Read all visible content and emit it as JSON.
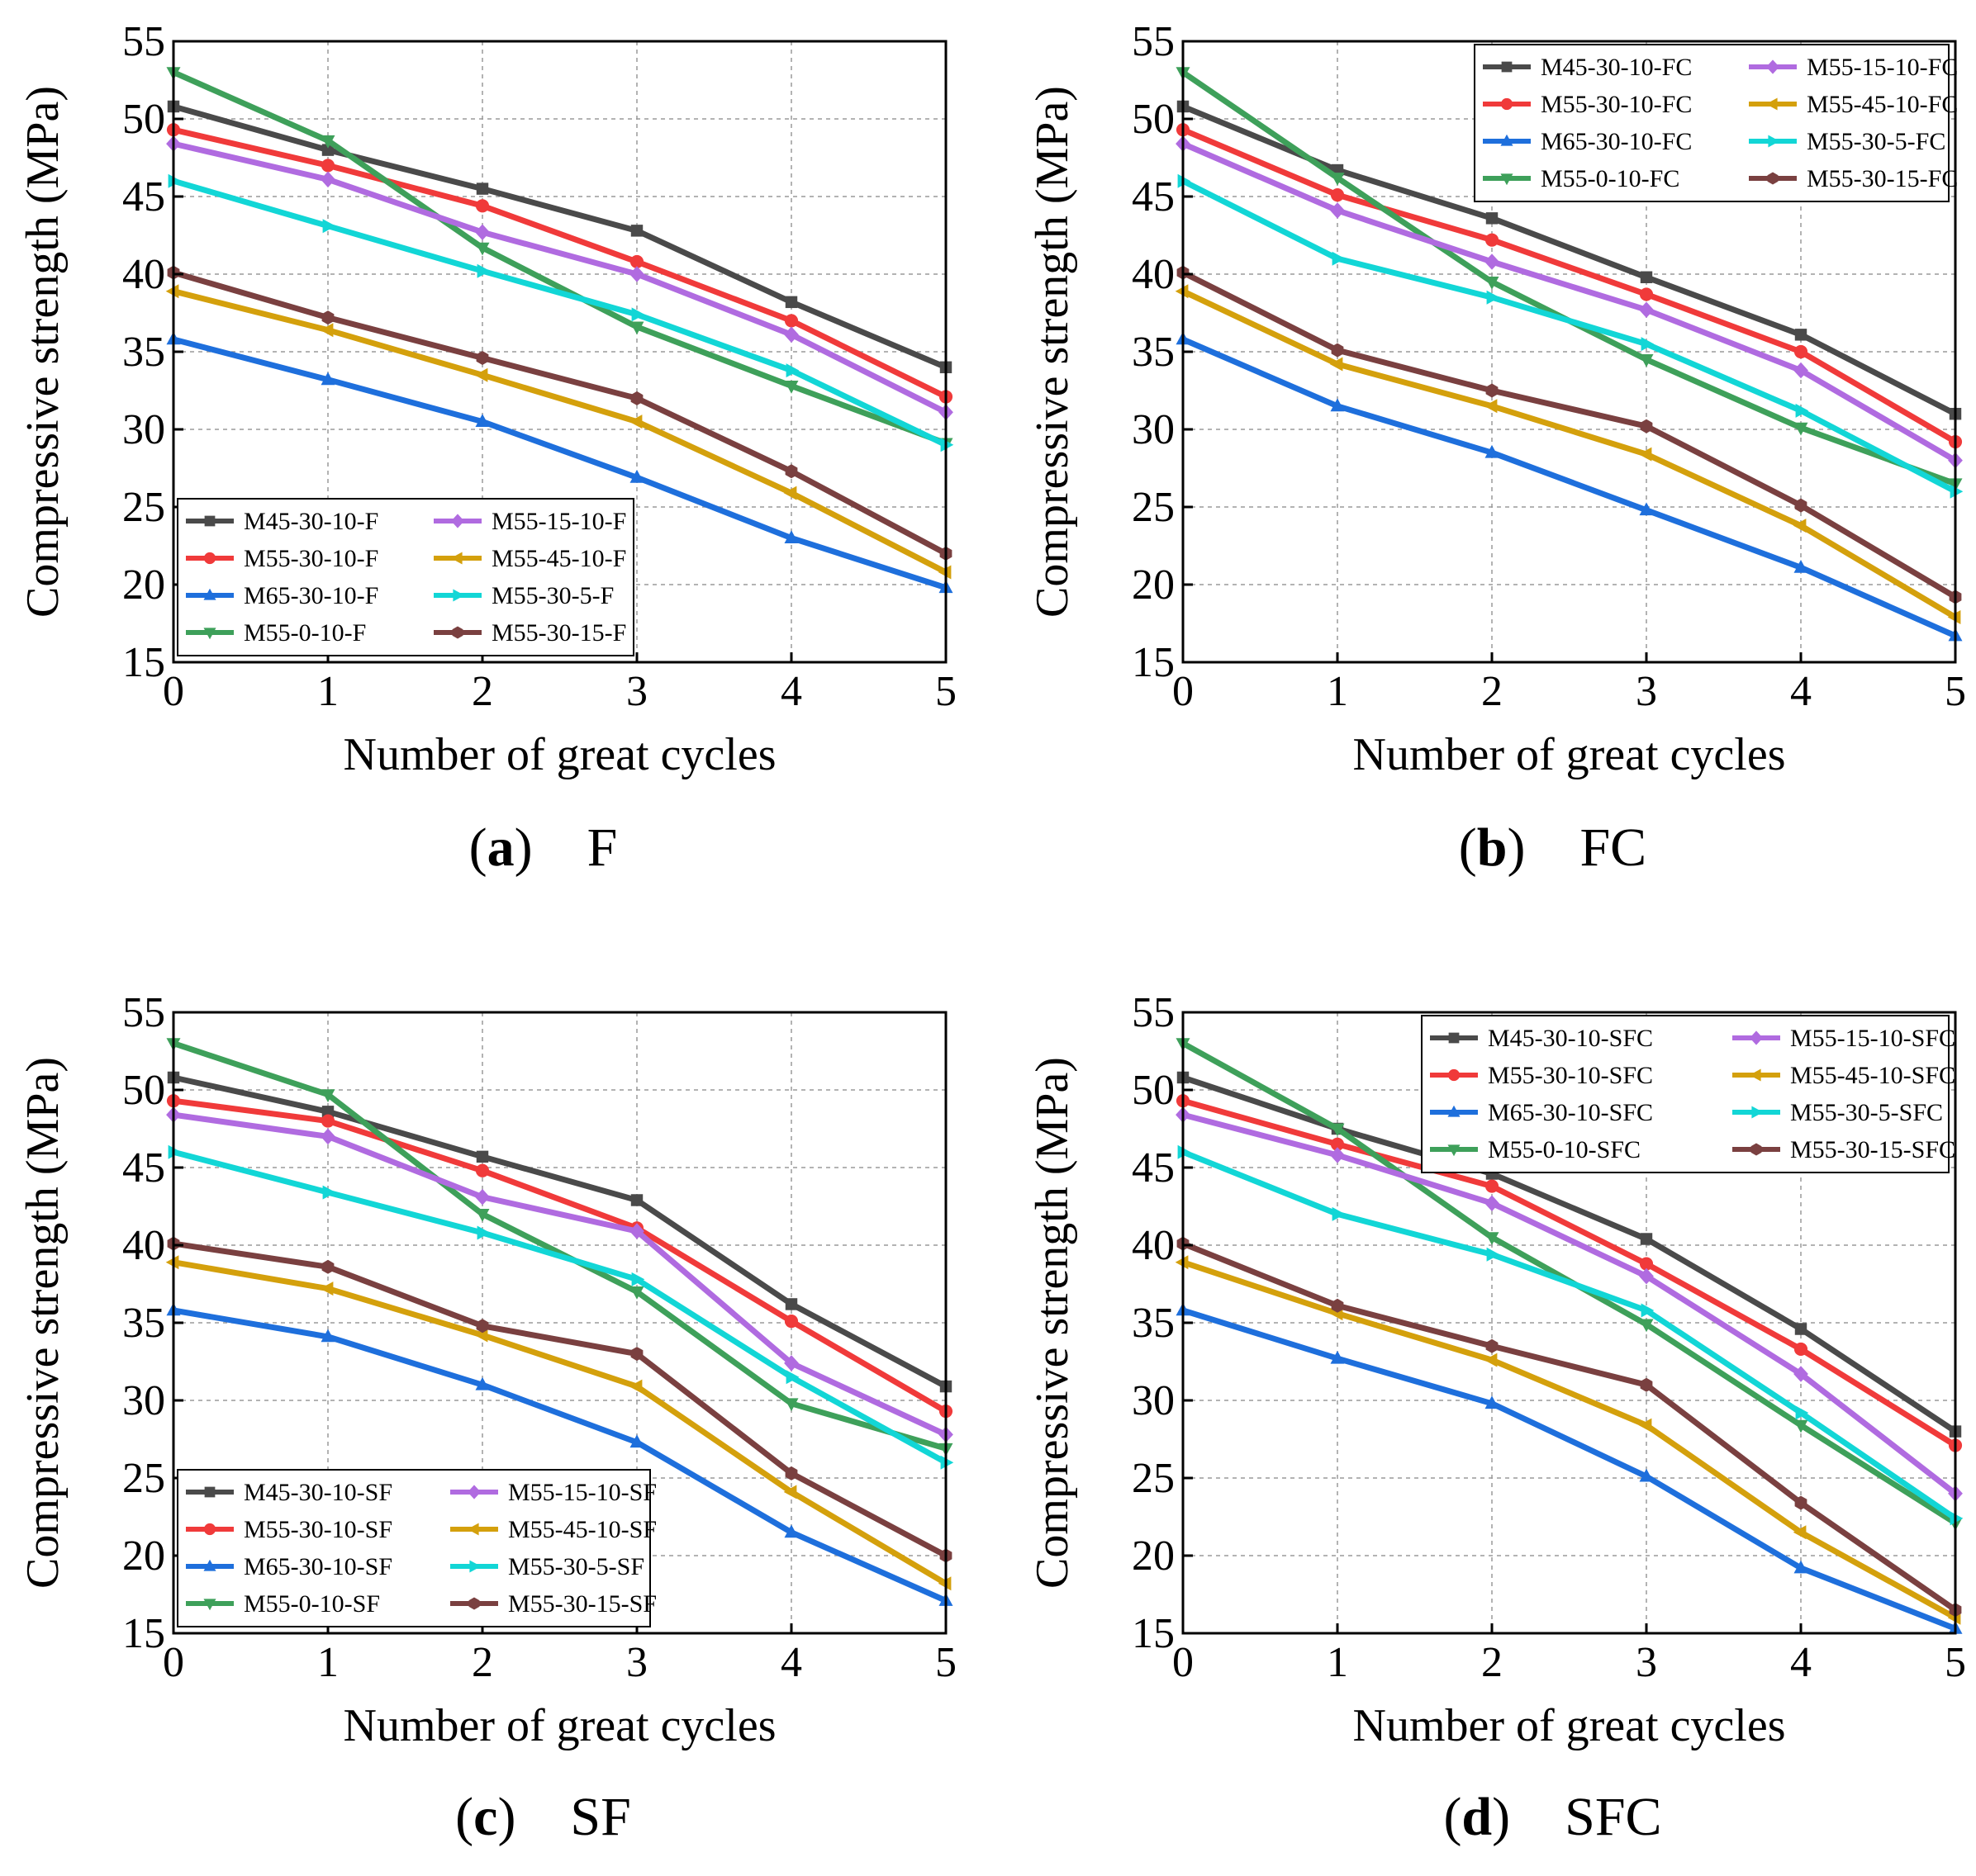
{
  "figure": {
    "colors": {
      "M45-30-10": "#4a4a4a",
      "M55-30-10": "#f03a3a",
      "M65-30-10": "#1e6fdc",
      "M55-0-10": "#3ea05a",
      "M55-15-10": "#b06be0",
      "M55-45-10": "#d4a00c",
      "M55-30-5": "#12d6d6",
      "M55-30-15": "#7a4040"
    }
  },
  "chart_data": [
    {
      "type": "line",
      "panel": "a",
      "caption_letter": "a",
      "caption_label": "F",
      "xlabel": "Number of great cycles",
      "ylabel": "Compressive strength (MPa)",
      "x": [
        0,
        1,
        2,
        3,
        4,
        5
      ],
      "xlim": [
        0,
        5
      ],
      "ylim": [
        15,
        55
      ],
      "xticks": [
        "0",
        "1",
        "2",
        "3",
        "4",
        "5"
      ],
      "yticks": [
        "15",
        "20",
        "25",
        "30",
        "35",
        "40",
        "45",
        "50",
        "55"
      ],
      "grid": true,
      "legend_position": "bottom-left",
      "series": [
        {
          "name": "M45-30-10-F",
          "key": "M45-30-10",
          "marker": "square",
          "values": [
            50.8,
            48.0,
            45.5,
            42.8,
            38.2,
            34.0
          ]
        },
        {
          "name": "M55-30-10-F",
          "key": "M55-30-10",
          "marker": "circle",
          "values": [
            49.3,
            47.0,
            44.4,
            40.8,
            37.0,
            32.1
          ]
        },
        {
          "name": "M65-30-10-F",
          "key": "M65-30-10",
          "marker": "triangle-up",
          "values": [
            35.8,
            33.2,
            30.5,
            26.9,
            23.0,
            19.8
          ]
        },
        {
          "name": "M55-0-10-F",
          "key": "M55-0-10",
          "marker": "triangle-down",
          "values": [
            53.0,
            48.6,
            41.7,
            36.6,
            32.8,
            29.1
          ]
        },
        {
          "name": "M55-15-10-F",
          "key": "M55-15-10",
          "marker": "diamond",
          "values": [
            48.4,
            46.1,
            42.7,
            40.0,
            36.1,
            31.1
          ]
        },
        {
          "name": "M55-45-10-F",
          "key": "M55-45-10",
          "marker": "triangle-left",
          "values": [
            38.9,
            36.4,
            33.5,
            30.5,
            25.9,
            20.8
          ]
        },
        {
          "name": "M55-30-5-F",
          "key": "M55-30-5",
          "marker": "triangle-right",
          "values": [
            46.0,
            43.1,
            40.2,
            37.4,
            33.8,
            29.0
          ]
        },
        {
          "name": "M55-30-15-F",
          "key": "M55-30-15",
          "marker": "hexagon",
          "values": [
            40.1,
            37.2,
            34.6,
            32.0,
            27.3,
            22.0
          ]
        }
      ]
    },
    {
      "type": "line",
      "panel": "b",
      "caption_letter": "b",
      "caption_label": "FC",
      "xlabel": "Number of great cycles",
      "ylabel": "Compressive strength (MPa)",
      "x": [
        0,
        1,
        2,
        3,
        4,
        5
      ],
      "xlim": [
        0,
        5
      ],
      "ylim": [
        15,
        55
      ],
      "xticks": [
        "0",
        "1",
        "2",
        "3",
        "4",
        "5"
      ],
      "yticks": [
        "15",
        "20",
        "25",
        "30",
        "35",
        "40",
        "45",
        "50",
        "55"
      ],
      "grid": true,
      "legend_position": "top-right",
      "series": [
        {
          "name": "M45-30-10-FC",
          "key": "M45-30-10",
          "marker": "square",
          "values": [
            50.8,
            46.7,
            43.6,
            39.8,
            36.1,
            31.0
          ]
        },
        {
          "name": "M55-30-10-FC",
          "key": "M55-30-10",
          "marker": "circle",
          "values": [
            49.3,
            45.1,
            42.2,
            38.7,
            35.0,
            29.2
          ]
        },
        {
          "name": "M65-30-10-FC",
          "key": "M65-30-10",
          "marker": "triangle-up",
          "values": [
            35.8,
            31.5,
            28.5,
            24.8,
            21.1,
            16.7
          ]
        },
        {
          "name": "M55-0-10-FC",
          "key": "M55-0-10",
          "marker": "triangle-down",
          "values": [
            53.0,
            46.2,
            39.5,
            34.5,
            30.1,
            26.5
          ]
        },
        {
          "name": "M55-15-10-FC",
          "key": "M55-15-10",
          "marker": "diamond",
          "values": [
            48.4,
            44.1,
            40.8,
            37.7,
            33.8,
            28.0
          ]
        },
        {
          "name": "M55-45-10-FC",
          "key": "M55-45-10",
          "marker": "triangle-left",
          "values": [
            38.9,
            34.2,
            31.5,
            28.4,
            23.8,
            17.9
          ]
        },
        {
          "name": "M55-30-5-FC",
          "key": "M55-30-5",
          "marker": "triangle-right",
          "values": [
            46.0,
            41.0,
            38.5,
            35.5,
            31.2,
            26.0
          ]
        },
        {
          "name": "M55-30-15-FC",
          "key": "M55-30-15",
          "marker": "hexagon",
          "values": [
            40.1,
            35.1,
            32.5,
            30.2,
            25.1,
            19.2
          ]
        }
      ]
    },
    {
      "type": "line",
      "panel": "c",
      "caption_letter": "c",
      "caption_label": "SF",
      "xlabel": "Number of great cycles",
      "ylabel": "Compressive strength (MPa)",
      "x": [
        0,
        1,
        2,
        3,
        4,
        5
      ],
      "xlim": [
        0,
        5
      ],
      "ylim": [
        15,
        55
      ],
      "xticks": [
        "0",
        "1",
        "2",
        "3",
        "4",
        "5"
      ],
      "yticks": [
        "15",
        "20",
        "25",
        "30",
        "35",
        "40",
        "45",
        "50",
        "55"
      ],
      "grid": true,
      "legend_position": "bottom-left",
      "series": [
        {
          "name": "M45-30-10-SF",
          "key": "M45-30-10",
          "marker": "square",
          "values": [
            50.8,
            48.6,
            45.7,
            42.9,
            36.2,
            30.9
          ]
        },
        {
          "name": "M55-30-10-SF",
          "key": "M55-30-10",
          "marker": "circle",
          "values": [
            49.3,
            48.0,
            44.8,
            41.1,
            35.1,
            29.3
          ]
        },
        {
          "name": "M65-30-10-SF",
          "key": "M65-30-10",
          "marker": "triangle-up",
          "values": [
            35.8,
            34.1,
            31.0,
            27.3,
            21.5,
            17.1
          ]
        },
        {
          "name": "M55-0-10-SF",
          "key": "M55-0-10",
          "marker": "triangle-down",
          "values": [
            53.0,
            49.7,
            42.0,
            37.0,
            29.8,
            26.9
          ]
        },
        {
          "name": "M55-15-10-SF",
          "key": "M55-15-10",
          "marker": "diamond",
          "values": [
            48.4,
            47.0,
            43.1,
            40.9,
            32.4,
            27.8
          ]
        },
        {
          "name": "M55-45-10-SF",
          "key": "M55-45-10",
          "marker": "triangle-left",
          "values": [
            38.9,
            37.2,
            34.2,
            30.9,
            24.1,
            18.2
          ]
        },
        {
          "name": "M55-30-5-SF",
          "key": "M55-30-5",
          "marker": "triangle-right",
          "values": [
            46.0,
            43.4,
            40.8,
            37.8,
            31.5,
            26.0
          ]
        },
        {
          "name": "M55-30-15-SF",
          "key": "M55-30-15",
          "marker": "hexagon",
          "values": [
            40.1,
            38.6,
            34.8,
            33.0,
            25.3,
            20.0
          ]
        }
      ]
    },
    {
      "type": "line",
      "panel": "d",
      "caption_letter": "d",
      "caption_label": "SFC",
      "xlabel": "Number of great cycles",
      "ylabel": "Compressive strength (MPa)",
      "x": [
        0,
        1,
        2,
        3,
        4,
        5
      ],
      "xlim": [
        0,
        5
      ],
      "ylim": [
        15,
        55
      ],
      "xticks": [
        "0",
        "1",
        "2",
        "3",
        "4",
        "5"
      ],
      "yticks": [
        "15",
        "20",
        "25",
        "30",
        "35",
        "40",
        "45",
        "50",
        "55"
      ],
      "grid": true,
      "legend_position": "top-right",
      "series": [
        {
          "name": "M45-30-10-SFC",
          "key": "M45-30-10",
          "marker": "square",
          "values": [
            50.8,
            47.5,
            44.6,
            40.4,
            34.6,
            28.0
          ]
        },
        {
          "name": "M55-30-10-SFC",
          "key": "M55-30-10",
          "marker": "circle",
          "values": [
            49.3,
            46.5,
            43.8,
            38.8,
            33.3,
            27.1
          ]
        },
        {
          "name": "M65-30-10-SFC",
          "key": "M65-30-10",
          "marker": "triangle-up",
          "values": [
            35.8,
            32.7,
            29.8,
            25.1,
            19.2,
            15.3
          ]
        },
        {
          "name": "M55-0-10-SFC",
          "key": "M55-0-10",
          "marker": "triangle-down",
          "values": [
            53.0,
            47.5,
            40.5,
            34.9,
            28.4,
            22.1
          ]
        },
        {
          "name": "M55-15-10-SFC",
          "key": "M55-15-10",
          "marker": "diamond",
          "values": [
            48.4,
            45.8,
            42.7,
            38.0,
            31.7,
            24.0
          ]
        },
        {
          "name": "M55-45-10-SFC",
          "key": "M55-45-10",
          "marker": "triangle-left",
          "values": [
            38.9,
            35.6,
            32.6,
            28.4,
            21.5,
            16.0
          ]
        },
        {
          "name": "M55-30-5-SFC",
          "key": "M55-30-5",
          "marker": "triangle-right",
          "values": [
            46.0,
            42.0,
            39.4,
            35.8,
            29.2,
            22.4
          ]
        },
        {
          "name": "M55-30-15-SFC",
          "key": "M55-30-15",
          "marker": "hexagon",
          "values": [
            40.1,
            36.1,
            33.5,
            31.0,
            23.4,
            16.5
          ]
        }
      ]
    }
  ]
}
